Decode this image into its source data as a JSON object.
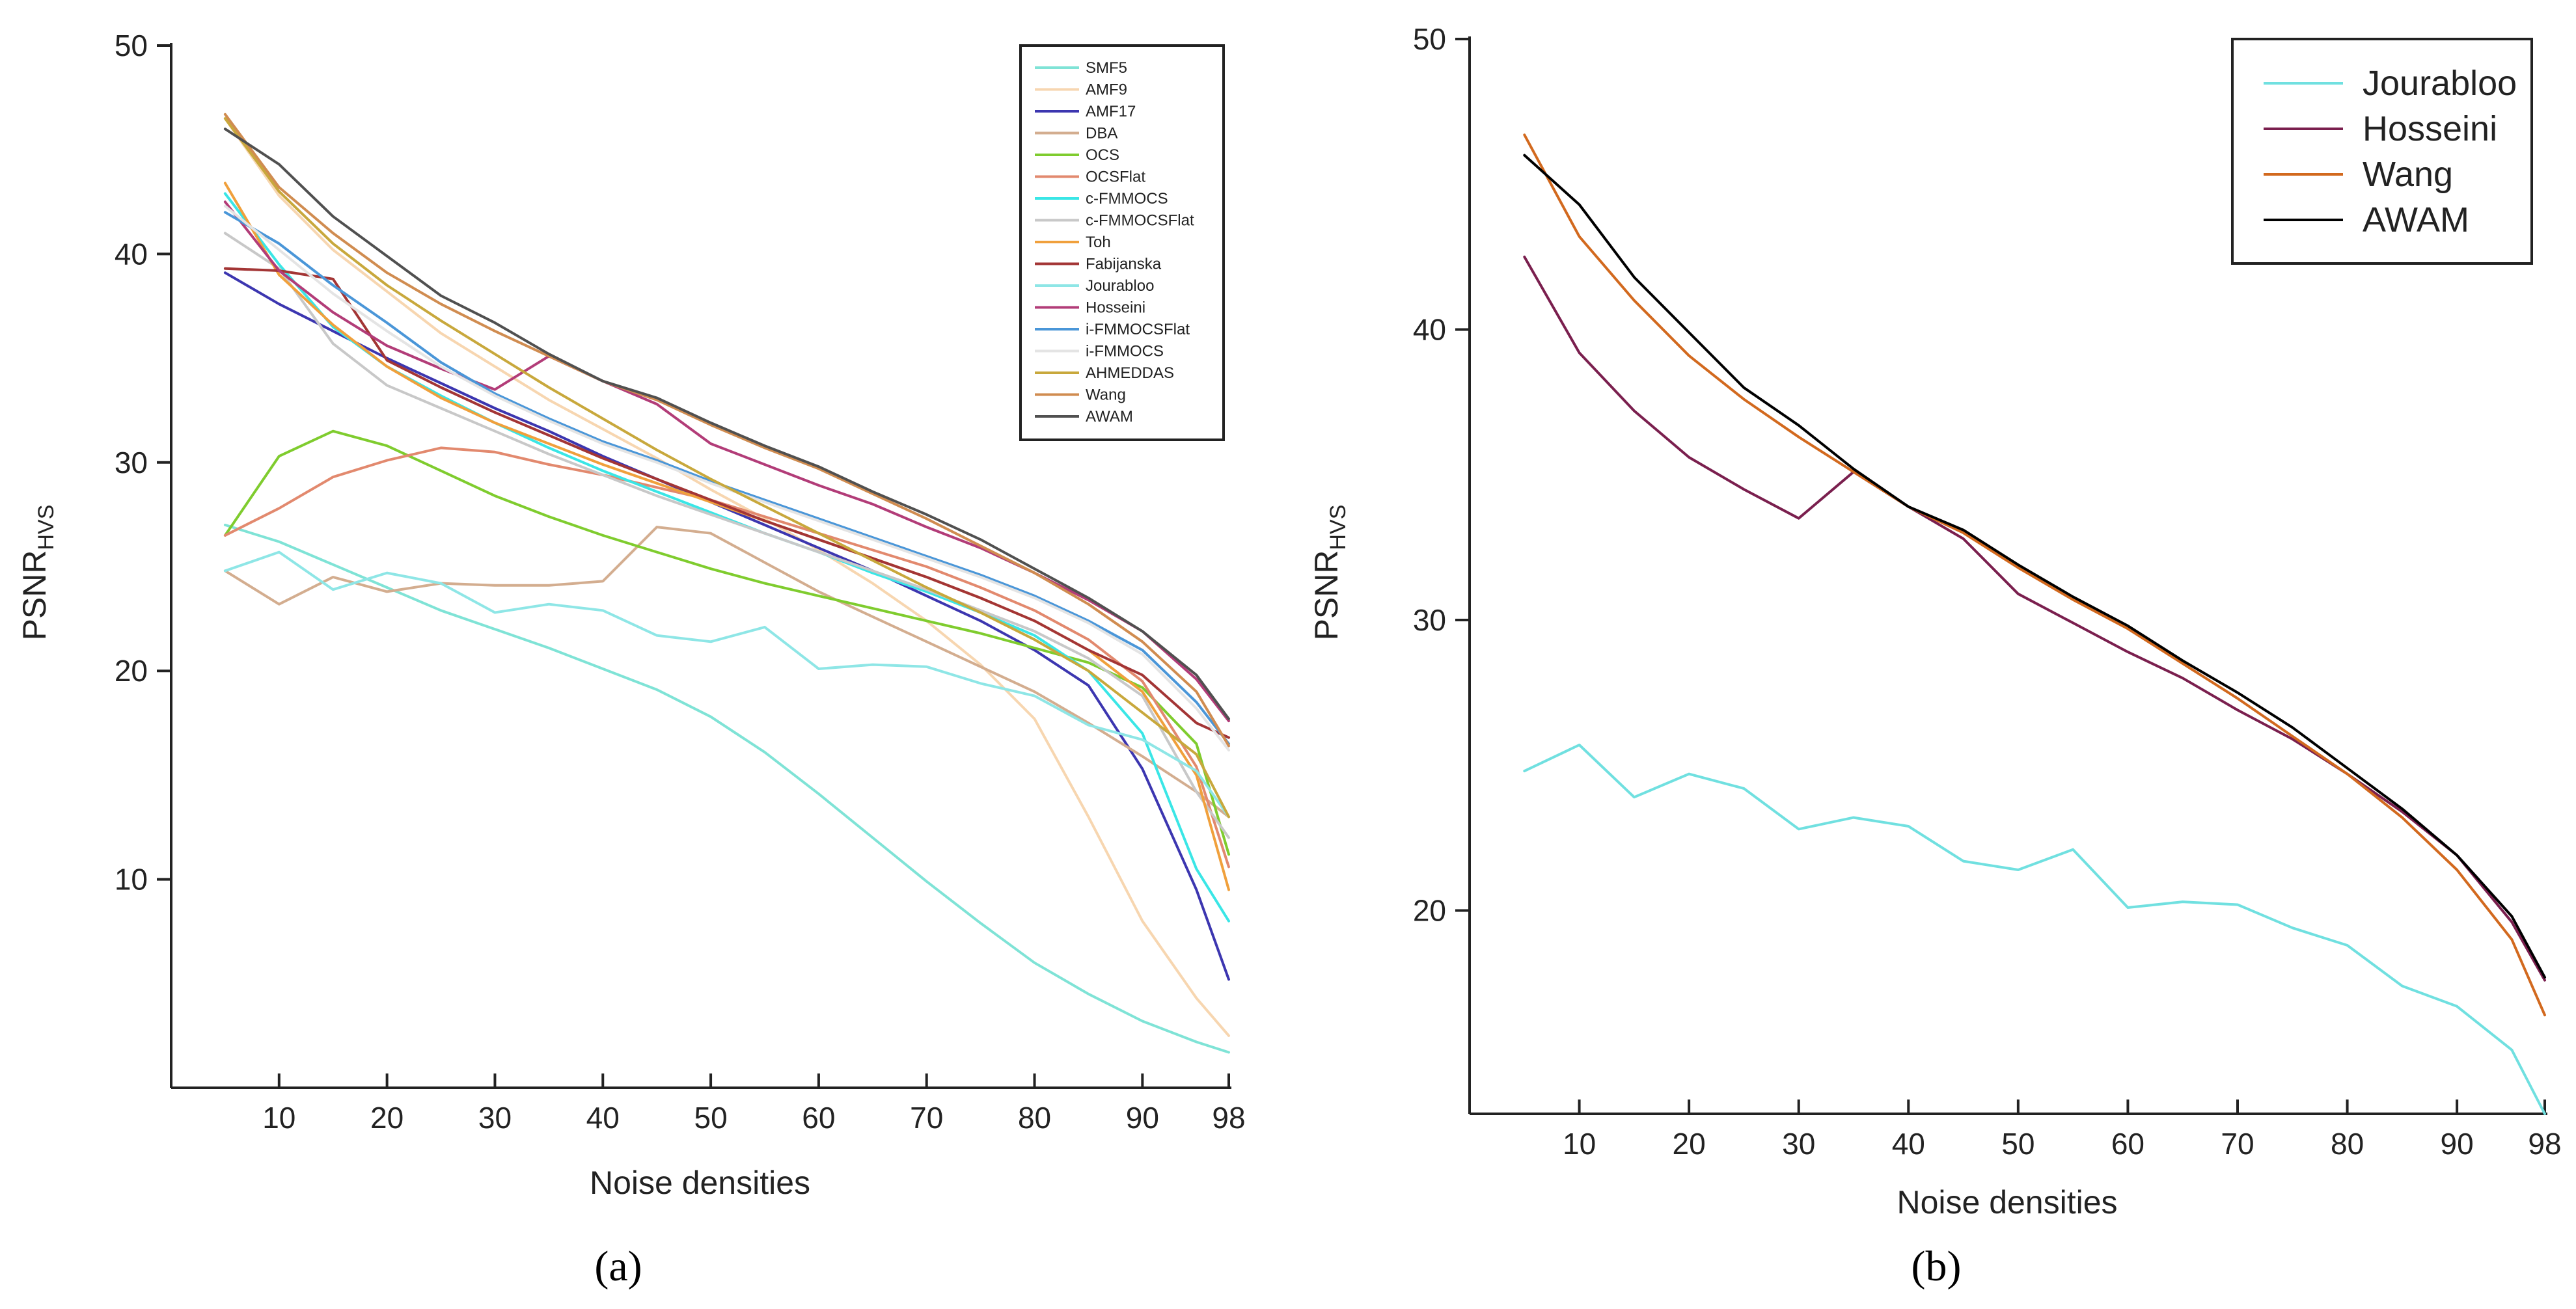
{
  "chart_data": [
    {
      "type": "line",
      "panel_label": "(a)",
      "xlabel": "Noise densities",
      "ylabel_main": "PSNR",
      "ylabel_sub": "HVS",
      "xlim": [
        0,
        98
      ],
      "ylim": [
        0,
        50
      ],
      "xticks": [
        10,
        20,
        30,
        40,
        50,
        60,
        70,
        80,
        90,
        98
      ],
      "yticks": [
        10,
        20,
        30,
        40,
        50
      ],
      "x": [
        5,
        10,
        15,
        20,
        25,
        30,
        35,
        40,
        45,
        50,
        55,
        60,
        65,
        70,
        75,
        80,
        85,
        90,
        95,
        98
      ],
      "series": [
        {
          "name": "SMF5",
          "color": "#7fe3d6",
          "values": [
            27.0,
            26.2,
            25.1,
            24.0,
            22.9,
            22.0,
            21.1,
            20.1,
            19.1,
            17.8,
            16.1,
            14.1,
            12.0,
            9.9,
            7.9,
            6.0,
            4.5,
            3.2,
            2.2,
            1.7
          ]
        },
        {
          "name": "AMF9",
          "color": "#f7d6b0",
          "values": [
            46.5,
            42.8,
            40.2,
            38.2,
            36.2,
            34.6,
            33.0,
            31.6,
            30.2,
            28.7,
            27.3,
            25.8,
            24.2,
            22.4,
            20.3,
            17.7,
            13.0,
            8.0,
            4.3,
            2.5
          ]
        },
        {
          "name": "AMF17",
          "color": "#3c36b0",
          "values": [
            39.1,
            37.6,
            36.3,
            35.0,
            33.8,
            32.6,
            31.5,
            30.3,
            29.2,
            28.1,
            27.0,
            25.9,
            24.8,
            23.6,
            22.4,
            21.0,
            19.3,
            15.3,
            9.5,
            5.2
          ]
        },
        {
          "name": "DBA",
          "color": "#d3ad8f",
          "values": [
            24.8,
            23.2,
            24.5,
            23.8,
            24.2,
            24.1,
            24.1,
            24.3,
            26.9,
            26.6,
            25.2,
            23.8,
            22.6,
            21.4,
            20.2,
            19.0,
            17.5,
            15.9,
            14.2,
            13.0
          ]
        },
        {
          "name": "OCS",
          "color": "#7fcc2e",
          "values": [
            26.5,
            30.3,
            31.5,
            30.8,
            29.6,
            28.4,
            27.4,
            26.5,
            25.7,
            24.9,
            24.2,
            23.6,
            23.0,
            22.4,
            21.8,
            21.1,
            20.4,
            19.2,
            16.5,
            11.2
          ]
        },
        {
          "name": "OCSFlat",
          "color": "#e2896e",
          "values": [
            26.5,
            27.8,
            29.3,
            30.1,
            30.7,
            30.5,
            29.9,
            29.4,
            28.8,
            28.2,
            27.4,
            26.6,
            25.8,
            25.0,
            24.0,
            22.9,
            21.5,
            19.5,
            15.4,
            10.6
          ]
        },
        {
          "name": "c-FMMOCS",
          "color": "#3ae6e6",
          "values": [
            42.9,
            39.5,
            36.5,
            34.6,
            33.2,
            31.9,
            30.7,
            29.6,
            28.6,
            27.6,
            26.6,
            25.7,
            24.7,
            23.8,
            22.8,
            21.7,
            20.0,
            17.0,
            10.5,
            8.0
          ]
        },
        {
          "name": "c-FMMOCSFlat",
          "color": "#c8c8c8",
          "values": [
            41.0,
            39.3,
            35.7,
            33.7,
            32.6,
            31.5,
            30.4,
            29.4,
            28.4,
            27.5,
            26.6,
            25.7,
            24.8,
            23.9,
            22.9,
            21.9,
            20.6,
            18.8,
            14.2,
            12.0
          ]
        },
        {
          "name": "Toh",
          "color": "#f0a03c",
          "values": [
            43.4,
            39.0,
            36.6,
            34.6,
            33.1,
            31.9,
            30.9,
            29.9,
            29.0,
            28.1,
            27.2,
            26.3,
            25.4,
            24.5,
            23.5,
            22.4,
            21.0,
            19.0,
            15.0,
            9.5
          ]
        },
        {
          "name": "Fabijanska",
          "color": "#a33535",
          "values": [
            39.3,
            39.2,
            38.8,
            34.9,
            33.6,
            32.4,
            31.3,
            30.2,
            29.2,
            28.2,
            27.2,
            26.3,
            25.4,
            24.5,
            23.5,
            22.4,
            21.0,
            19.8,
            17.5,
            16.8
          ]
        },
        {
          "name": "Jourabloo",
          "color": "#8ee6e6",
          "values": [
            24.8,
            25.7,
            23.9,
            24.7,
            24.2,
            22.8,
            23.2,
            22.9,
            21.7,
            21.4,
            22.1,
            20.1,
            20.3,
            20.2,
            19.4,
            18.8,
            17.4,
            16.7,
            15.2,
            13.0
          ]
        },
        {
          "name": "Hosseini",
          "color": "#b23c78",
          "values": [
            42.5,
            39.2,
            37.2,
            35.6,
            34.5,
            33.5,
            35.1,
            33.9,
            32.8,
            30.9,
            29.9,
            28.9,
            28.0,
            26.9,
            25.9,
            24.7,
            23.4,
            21.9,
            19.6,
            17.6
          ]
        },
        {
          "name": "i-FMMOCSFlat",
          "color": "#4a96d8",
          "values": [
            42.0,
            40.5,
            38.5,
            36.7,
            34.8,
            33.3,
            32.1,
            31.0,
            30.1,
            29.1,
            28.2,
            27.3,
            26.4,
            25.5,
            24.6,
            23.6,
            22.4,
            21.0,
            18.5,
            16.5
          ]
        },
        {
          "name": "i-FMMOCS",
          "color": "#e4e4e4",
          "values": [
            42.3,
            40.2,
            38.1,
            36.3,
            34.6,
            33.2,
            32.0,
            30.9,
            30.0,
            29.0,
            28.1,
            27.2,
            26.3,
            25.4,
            24.5,
            23.5,
            22.3,
            20.8,
            18.2,
            16.2
          ]
        },
        {
          "name": "AHMEDDAS",
          "color": "#c8a83c",
          "values": [
            46.5,
            43.0,
            40.5,
            38.5,
            36.8,
            35.2,
            33.6,
            32.1,
            30.6,
            29.2,
            27.9,
            26.6,
            25.3,
            24.0,
            22.8,
            21.5,
            20.0,
            18.0,
            16.0,
            13.0
          ]
        },
        {
          "name": "Wang",
          "color": "#d08c50",
          "values": [
            46.7,
            43.2,
            41.0,
            39.1,
            37.6,
            36.3,
            35.1,
            33.9,
            33.0,
            31.8,
            30.7,
            29.7,
            28.5,
            27.3,
            26.0,
            24.7,
            23.2,
            21.4,
            19.0,
            16.4
          ]
        },
        {
          "name": "AWAM",
          "color": "#505050",
          "values": [
            46.0,
            44.3,
            41.8,
            39.9,
            38.0,
            36.7,
            35.2,
            33.9,
            33.1,
            31.9,
            30.8,
            29.8,
            28.6,
            27.5,
            26.3,
            24.9,
            23.5,
            21.9,
            19.8,
            17.7
          ]
        }
      ]
    },
    {
      "type": "line",
      "panel_label": "(b)",
      "xlabel": "Noise densities",
      "ylabel_main": "PSNR",
      "ylabel_sub": "HVS",
      "xlim": [
        0,
        98
      ],
      "ylim": [
        13,
        50
      ],
      "xticks": [
        10,
        20,
        30,
        40,
        50,
        60,
        70,
        80,
        90,
        98
      ],
      "yticks": [
        20,
        30,
        40,
        50
      ],
      "x": [
        5,
        10,
        15,
        20,
        25,
        30,
        35,
        40,
        45,
        50,
        55,
        60,
        65,
        70,
        75,
        80,
        85,
        90,
        95,
        98
      ],
      "series": [
        {
          "name": "Jourabloo",
          "color": "#70e0e0",
          "values": [
            24.8,
            25.7,
            23.9,
            24.7,
            24.2,
            22.8,
            23.2,
            22.9,
            21.7,
            21.4,
            22.1,
            20.1,
            20.3,
            20.2,
            19.4,
            18.8,
            17.4,
            16.7,
            15.2,
            13.0
          ]
        },
        {
          "name": "Hosseini",
          "color": "#7a1f4e",
          "values": [
            42.5,
            39.2,
            37.2,
            35.6,
            34.5,
            33.5,
            35.1,
            33.9,
            32.8,
            30.9,
            29.9,
            28.9,
            28.0,
            26.9,
            25.9,
            24.7,
            23.4,
            21.9,
            19.6,
            17.6
          ]
        },
        {
          "name": "Wang",
          "color": "#d2691e",
          "values": [
            46.7,
            43.2,
            41.0,
            39.1,
            37.6,
            36.3,
            35.1,
            33.9,
            33.0,
            31.8,
            30.7,
            29.7,
            28.5,
            27.3,
            26.0,
            24.7,
            23.2,
            21.4,
            19.0,
            16.4
          ]
        },
        {
          "name": "AWAM",
          "color": "#000000",
          "values": [
            46.0,
            44.3,
            41.8,
            39.9,
            38.0,
            36.7,
            35.2,
            33.9,
            33.1,
            31.9,
            30.8,
            29.8,
            28.6,
            27.5,
            26.3,
            24.9,
            23.5,
            21.9,
            19.8,
            17.7
          ]
        }
      ]
    }
  ]
}
